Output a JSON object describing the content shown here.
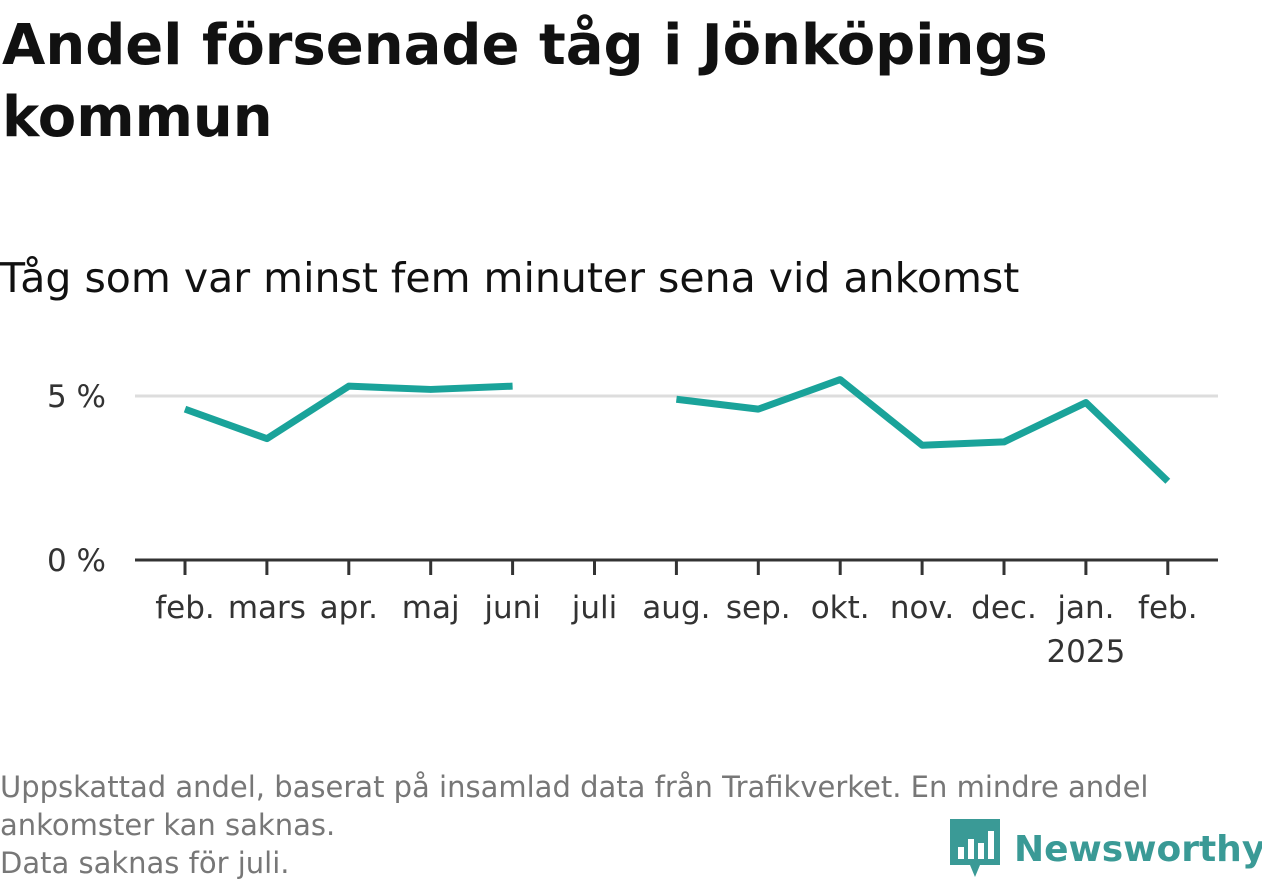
{
  "title": "Andel försenade tåg i Jönköpings kommun",
  "subtitle": "Tåg som var minst fem minuter sena vid ankomst",
  "footnote": {
    "line1": "Uppskattad andel, baserat på insamlad data från Trafikverket. En mindre andel",
    "line2": "ankomster kan saknas.",
    "line3": "Data saknas för juli."
  },
  "logo": {
    "text": "Newsworthy",
    "color": "#3a9a96",
    "icon": "bar-chart-speech-bubble-icon"
  },
  "colors": {
    "line": "#1aa39a",
    "grid": "#dddddd",
    "axis": "#333333"
  },
  "chart_data": {
    "type": "line",
    "categories": [
      "feb.",
      "mars",
      "apr.",
      "maj",
      "juni",
      "juli",
      "aug.",
      "sep.",
      "okt.",
      "nov.",
      "dec.",
      "jan.",
      "feb."
    ],
    "year_labels": [
      "",
      "",
      "",
      "",
      "",
      "",
      "",
      "",
      "",
      "",
      "",
      "2025",
      ""
    ],
    "series": [
      {
        "values": [
          4.6,
          3.7,
          5.3,
          5.2,
          5.3,
          null,
          4.9,
          4.6,
          5.5,
          3.5,
          3.6,
          4.8,
          2.4
        ]
      }
    ],
    "y_ticks": [
      0,
      5
    ],
    "y_tick_labels": [
      "0 %",
      "5 %"
    ],
    "ylim": [
      0,
      5.5
    ],
    "grid": true,
    "legend": "none"
  }
}
